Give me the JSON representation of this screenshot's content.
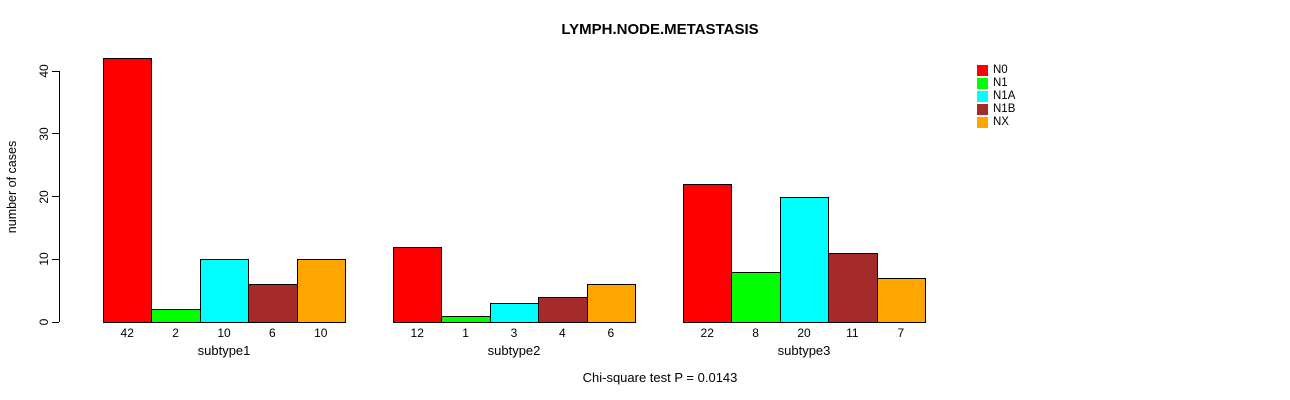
{
  "chart_data": {
    "type": "bar",
    "title": "LYMPH.NODE.METASTASIS",
    "xlabel": "",
    "ylabel": "number of cases",
    "categories": [
      "subtype1",
      "subtype2",
      "subtype3"
    ],
    "series": [
      {
        "name": "N0",
        "color": "#FF0000",
        "values": [
          42,
          12,
          22
        ]
      },
      {
        "name": "N1",
        "color": "#00FF00",
        "values": [
          2,
          1,
          8
        ]
      },
      {
        "name": "N1A",
        "color": "#00FFFF",
        "values": [
          10,
          3,
          20
        ]
      },
      {
        "name": "N1B",
        "color": "#A52A2A",
        "values": [
          6,
          4,
          11
        ]
      },
      {
        "name": "NX",
        "color": "#FFA500",
        "values": [
          10,
          6,
          7
        ]
      }
    ],
    "yticks": [
      0,
      10,
      20,
      30,
      40
    ],
    "ylim": [
      0,
      40
    ],
    "bar_value_labels_shown": true,
    "grid": false,
    "legend_position": "top-right",
    "annotation": "Chi-square test P = 0.0143",
    "background_color": "#FFFFFF",
    "bar_border_color": "#000000",
    "text_color": "#000000"
  }
}
